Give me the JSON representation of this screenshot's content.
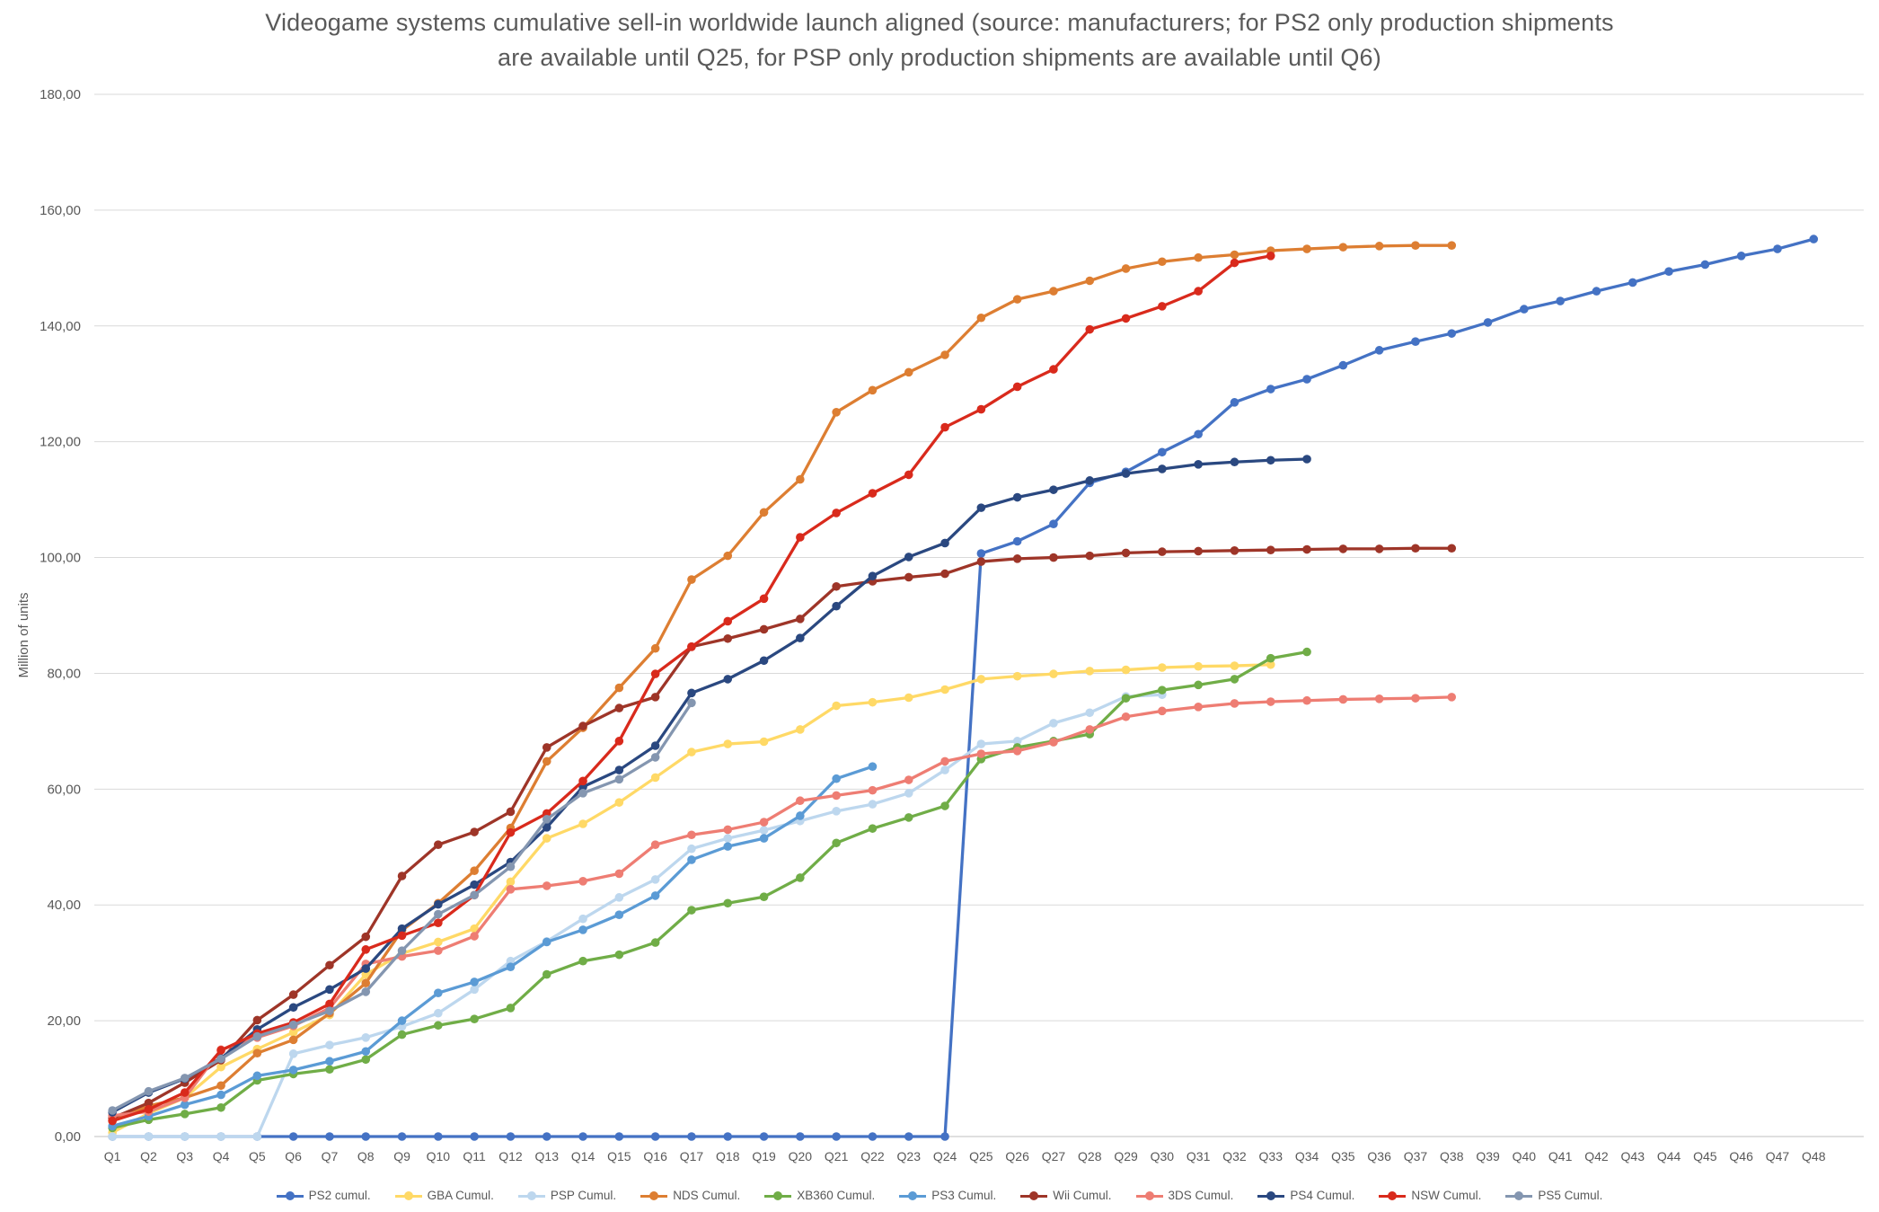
{
  "title_lines": [
    "Videogame systems cumulative sell-in worldwide launch aligned (source: manufacturers; for PS2 only production shipments",
    "are available until Q25, for PSP only production shipments are available until Q6)"
  ],
  "y_axis": {
    "label": "Million of units",
    "tick_values": [
      0,
      20,
      40,
      60,
      80,
      100,
      120,
      140,
      160,
      180
    ],
    "tick_labels": [
      "0,00",
      "20,00",
      "40,00",
      "60,00",
      "80,00",
      "100,00",
      "120,00",
      "140,00",
      "160,00",
      "180,00"
    ]
  },
  "chart_data": {
    "type": "line",
    "title": "Videogame systems cumulative sell-in worldwide launch aligned (source: manufacturers; for PS2 only production shipments are available until Q25, for PSP only production shipments are available until Q6)",
    "xlabel": "",
    "ylabel": "Million of units",
    "ylim": [
      0,
      180
    ],
    "grid": true,
    "legend_position": "bottom",
    "categories": [
      "Q1",
      "Q2",
      "Q3",
      "Q4",
      "Q5",
      "Q6",
      "Q7",
      "Q8",
      "Q9",
      "Q10",
      "Q11",
      "Q12",
      "Q13",
      "Q14",
      "Q15",
      "Q16",
      "Q17",
      "Q18",
      "Q19",
      "Q20",
      "Q21",
      "Q22",
      "Q23",
      "Q24",
      "Q25",
      "Q26",
      "Q27",
      "Q28",
      "Q29",
      "Q30",
      "Q31",
      "Q32",
      "Q33",
      "Q34",
      "Q35",
      "Q36",
      "Q37",
      "Q38",
      "Q39",
      "Q40",
      "Q41",
      "Q42",
      "Q43",
      "Q44",
      "Q45",
      "Q46",
      "Q47",
      "Q48"
    ],
    "series": [
      {
        "key": "ps2",
        "name": "PS2 cumul.",
        "color": "#4472C4",
        "values": [
          0,
          0,
          0,
          0,
          0,
          0,
          0,
          0,
          0,
          0,
          0,
          0,
          0,
          0,
          0,
          0,
          0,
          0,
          0,
          0,
          0,
          0,
          0,
          0,
          100.7,
          102.8,
          105.8,
          112.9,
          114.8,
          118.2,
          121.3,
          126.8,
          129.1,
          130.8,
          133.2,
          135.8,
          137.3,
          138.7,
          140.6,
          142.9,
          144.3,
          146.0,
          147.5,
          149.4,
          150.6,
          152.1,
          153.3,
          155.0
        ]
      },
      {
        "key": "gba",
        "name": "GBA Cumul.",
        "color": "#FFD966",
        "values": [
          0.7,
          4.0,
          6.7,
          12.0,
          15.1,
          18.0,
          21.0,
          28.0,
          31.6,
          33.6,
          35.9,
          44.0,
          51.5,
          54.0,
          57.7,
          62.0,
          66.4,
          67.8,
          68.2,
          70.3,
          74.4,
          75.0,
          75.8,
          77.2,
          79.0,
          79.5,
          79.9,
          80.4,
          80.6,
          81.0,
          81.2,
          81.3,
          81.5
        ]
      },
      {
        "key": "psp",
        "name": "PSP Cumul.",
        "color": "#BDD7EE",
        "values": [
          0,
          0,
          0,
          0,
          0,
          14.3,
          15.8,
          17.1,
          19.0,
          21.3,
          25.4,
          30.3,
          33.7,
          37.6,
          41.3,
          44.4,
          49.7,
          51.5,
          52.9,
          54.5,
          56.2,
          57.4,
          59.3,
          63.3,
          67.8,
          68.3,
          71.4,
          73.2,
          76.0,
          76.3
        ]
      },
      {
        "key": "nds",
        "name": "NDS Cumul.",
        "color": "#DD7E32",
        "values": [
          2.8,
          5.3,
          6.7,
          8.8,
          14.4,
          16.7,
          21.3,
          26.5,
          35.6,
          40.3,
          45.9,
          53.3,
          64.8,
          70.6,
          77.5,
          84.3,
          96.2,
          100.3,
          107.8,
          113.5,
          125.1,
          128.9,
          132.0,
          135.0,
          141.4,
          144.6,
          146.0,
          147.8,
          149.9,
          151.1,
          151.8,
          152.3,
          153.0,
          153.3,
          153.6,
          153.8,
          153.9,
          153.9
        ]
      },
      {
        "key": "xb360",
        "name": "XB360 Cumul.",
        "color": "#70AD47",
        "values": [
          1.5,
          2.9,
          3.9,
          5.0,
          9.7,
          10.8,
          11.6,
          13.3,
          17.6,
          19.2,
          20.3,
          22.2,
          28.0,
          30.3,
          31.4,
          33.5,
          39.1,
          40.3,
          41.4,
          44.7,
          50.7,
          53.2,
          55.1,
          57.1,
          65.2,
          67.2,
          68.3,
          69.5,
          75.7,
          77.1,
          78.0,
          79.0,
          82.6,
          83.7
        ]
      },
      {
        "key": "ps3",
        "name": "PS3 Cumul.",
        "color": "#5B9BD5",
        "values": [
          1.8,
          3.5,
          5.5,
          7.2,
          10.5,
          11.5,
          13.0,
          14.7,
          20.0,
          24.8,
          26.7,
          29.3,
          33.6,
          35.7,
          38.3,
          41.6,
          47.8,
          50.1,
          51.5,
          55.4,
          61.8,
          63.9
        ]
      },
      {
        "key": "wii",
        "name": "Wii Cumul.",
        "color": "#9E3528",
        "values": [
          3.2,
          5.8,
          9.3,
          13.2,
          20.1,
          24.5,
          29.6,
          34.5,
          45.0,
          50.4,
          52.6,
          56.1,
          67.2,
          70.9,
          74.0,
          75.9,
          84.6,
          86.0,
          87.6,
          89.4,
          95.0,
          95.9,
          96.6,
          97.2,
          99.3,
          99.8,
          100.0,
          100.3,
          100.8,
          101.0,
          101.1,
          101.2,
          101.3,
          101.4,
          101.5,
          101.5,
          101.6,
          101.6
        ]
      },
      {
        "key": "3ds",
        "name": "3DS Cumul.",
        "color": "#EE7D73",
        "values": [
          3.6,
          4.3,
          6.7,
          15.0,
          17.1,
          19.1,
          22.2,
          29.8,
          31.1,
          32.1,
          34.6,
          42.7,
          43.3,
          44.1,
          45.4,
          50.4,
          52.1,
          53.0,
          54.3,
          58.0,
          58.9,
          59.8,
          61.6,
          64.8,
          66.1,
          66.6,
          68.1,
          70.3,
          72.5,
          73.5,
          74.2,
          74.8,
          75.1,
          75.3,
          75.5,
          75.6,
          75.7,
          75.9
        ]
      },
      {
        "key": "ps4",
        "name": "PS4 Cumul.",
        "color": "#2A4880",
        "values": [
          4.2,
          7.6,
          10.0,
          13.5,
          18.5,
          22.3,
          25.4,
          29.0,
          35.9,
          40.1,
          43.5,
          47.4,
          53.4,
          60.4,
          63.3,
          67.5,
          76.6,
          79.0,
          82.2,
          86.1,
          91.6,
          96.8,
          100.1,
          102.5,
          108.6,
          110.4,
          111.7,
          113.3,
          114.5,
          115.3,
          116.1,
          116.5,
          116.8,
          117.0
        ]
      },
      {
        "key": "nsw",
        "name": "NSW Cumul.",
        "color": "#D92A1C",
        "values": [
          2.7,
          4.7,
          7.6,
          14.9,
          17.8,
          19.7,
          22.9,
          32.3,
          34.7,
          36.9,
          41.7,
          52.5,
          55.8,
          61.4,
          68.3,
          79.9,
          84.6,
          89.0,
          92.9,
          103.5,
          107.7,
          111.1,
          114.3,
          122.5,
          125.6,
          129.5,
          132.5,
          139.4,
          141.3,
          143.4,
          146.0,
          150.9,
          152.1
        ]
      },
      {
        "key": "ps5",
        "name": "PS5 Cumul.",
        "color": "#8496B0",
        "values": [
          4.5,
          7.8,
          10.1,
          13.4,
          17.3,
          19.3,
          21.7,
          25.0,
          32.1,
          38.4,
          41.7,
          46.6,
          54.8,
          59.3,
          61.7,
          65.5,
          74.9
        ]
      }
    ]
  }
}
